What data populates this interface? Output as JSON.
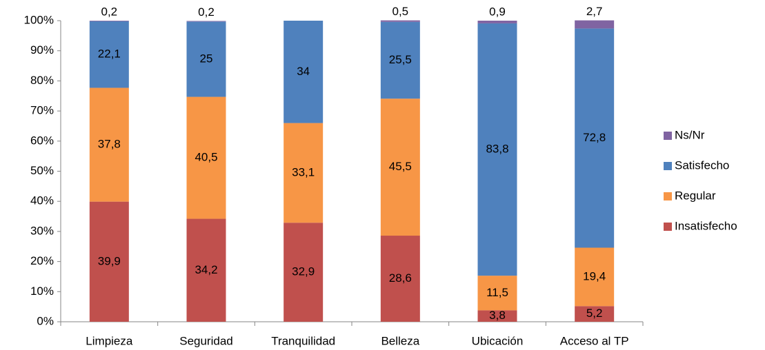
{
  "chart_data": {
    "type": "stacked_bar",
    "categories": [
      "Limpieza",
      "Seguridad",
      "Tranquilidad",
      "Belleza",
      "Ubicación",
      "Acceso al TP"
    ],
    "series": [
      {
        "name": "Insatisfecho",
        "color": "#c0504d",
        "values": [
          39.9,
          34.2,
          32.9,
          28.6,
          3.8,
          5.2
        ],
        "value_labels": [
          "39,9",
          "34,2",
          "32,9",
          "28,6",
          "3,8",
          "5,2"
        ]
      },
      {
        "name": "Regular",
        "color": "#f79646",
        "values": [
          37.8,
          40.5,
          33.1,
          45.5,
          11.5,
          19.4
        ],
        "value_labels": [
          "37,8",
          "40,5",
          "33,1",
          "45,5",
          "11,5",
          "19,4"
        ]
      },
      {
        "name": "Satisfecho",
        "color": "#4f81bd",
        "values": [
          22.1,
          25,
          34,
          25.5,
          83.8,
          72.8
        ],
        "value_labels": [
          "22,1",
          "25",
          "34",
          "25,5",
          "83,8",
          "72,8"
        ]
      },
      {
        "name": "Ns/Nr",
        "color": "#8064a2",
        "values": [
          0.2,
          0.2,
          null,
          0.5,
          0.9,
          2.7
        ],
        "value_labels": [
          "0,2",
          "0,2",
          null,
          "0,5",
          "0,9",
          "2,7"
        ]
      }
    ],
    "ylim": [
      0,
      100
    ],
    "yticks": [
      {
        "value": 0,
        "label": "0%"
      },
      {
        "value": 10,
        "label": "10%"
      },
      {
        "value": 20,
        "label": "20%"
      },
      {
        "value": 30,
        "label": "30%"
      },
      {
        "value": 40,
        "label": "40%"
      },
      {
        "value": 50,
        "label": "50%"
      },
      {
        "value": 60,
        "label": "60%"
      },
      {
        "value": 70,
        "label": "70%"
      },
      {
        "value": 80,
        "label": "80%"
      },
      {
        "value": 90,
        "label": "90%"
      },
      {
        "value": 100,
        "label": "100%"
      }
    ],
    "legend": "right"
  }
}
